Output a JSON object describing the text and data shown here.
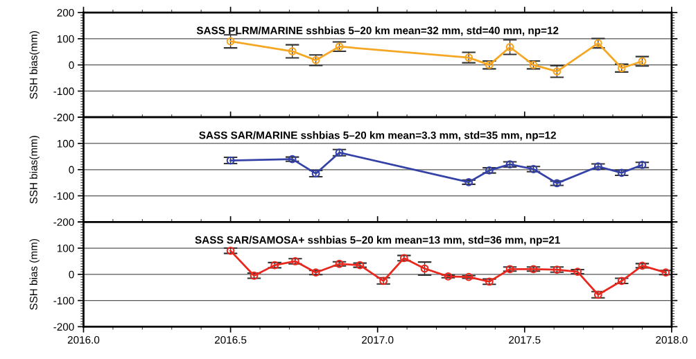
{
  "chart_data": [
    {
      "type": "line",
      "title": "SASS PLRM/MARINE sshbias 5–20 km mean=32 mm, std=40 mm, np=12",
      "ylabel": "SSH bias(mm)",
      "xlim": [
        2016.0,
        2018.0
      ],
      "xticks": [
        2016.0,
        2016.5,
        2017.0,
        2017.5,
        2018.0
      ],
      "ylim": [
        -200,
        200
      ],
      "yticks": [
        -200,
        -100,
        0,
        100,
        200
      ],
      "tick_labels": "y",
      "grid": "y",
      "marker": "circle",
      "line_style": "solid",
      "x": [
        2016.5,
        2016.71,
        2016.79,
        2016.87,
        2017.31,
        2017.38,
        2017.45,
        2017.53,
        2017.61,
        2017.75,
        2017.83,
        2017.9
      ],
      "series": [
        {
          "color": "#f5a623",
          "values": [
            90,
            52,
            18,
            70,
            28,
            0,
            68,
            0,
            -25,
            83,
            -12,
            14
          ],
          "errors": [
            25,
            25,
            20,
            18,
            20,
            15,
            28,
            15,
            22,
            18,
            15,
            18
          ]
        }
      ]
    },
    {
      "type": "line",
      "title": "SASS SAR/MARINE sshbias 5–20 km mean=3.3 mm, std=35 mm, np=12",
      "ylabel": "SSH bias(mm)",
      "xlim": [
        2016.0,
        2018.0
      ],
      "xticks": [
        2016.0,
        2016.5,
        2017.0,
        2017.5,
        2018.0
      ],
      "ylim": [
        -200,
        200
      ],
      "yticks": [
        -200,
        -100,
        0,
        100,
        {
          "value": 200,
          "label": null
        }
      ],
      "tick_labels": "y",
      "grid": "y",
      "marker": "circle",
      "line_style": "solid",
      "x": [
        2016.5,
        2016.71,
        2016.79,
        2016.87,
        2017.31,
        2017.38,
        2017.45,
        2017.53,
        2017.61,
        2017.75,
        2017.83,
        2017.9
      ],
      "series": [
        {
          "color": "#3442a8",
          "values": [
            35,
            40,
            -15,
            65,
            -48,
            -3,
            20,
            2,
            -52,
            12,
            -12,
            18
          ],
          "errors": [
            12,
            8,
            12,
            12,
            8,
            10,
            10,
            10,
            8,
            10,
            10,
            10
          ]
        }
      ]
    },
    {
      "type": "line",
      "title": "SASS SAR/SAMOSA+ sshbias 5–20 km mean=13 mm, std=36 mm, np=21",
      "ylabel": "SSH bias (mm)",
      "xlim": [
        2016.0,
        2018.0
      ],
      "xticks": [
        {
          "value": 2016.0,
          "label": "2016.0"
        },
        {
          "value": 2016.5,
          "label": "2016.5"
        },
        {
          "value": 2017.0,
          "label": "2017.0"
        },
        {
          "value": 2017.5,
          "label": "2017.5"
        },
        {
          "value": 2018.0,
          "label": "2018.0"
        }
      ],
      "ylim": [
        -200,
        200
      ],
      "yticks": [
        -200,
        -100,
        0,
        100,
        {
          "value": 200,
          "label": null
        }
      ],
      "grid": "y",
      "marker": "circle",
      "line_style": "solid",
      "x": [
        2016.5,
        2016.58,
        2016.65,
        2016.72,
        2016.79,
        2016.87,
        2016.94,
        2017.02,
        2017.09,
        2017.16,
        2017.24,
        2017.31,
        2017.38,
        2017.45,
        2017.53,
        2017.61,
        2017.68,
        2017.75,
        2017.83,
        2017.9,
        2017.98
      ],
      "series": [
        {
          "color": "#e8281e",
          "values": [
            90,
            -5,
            35,
            50,
            7,
            40,
            35,
            -25,
            62,
            22,
            -8,
            -10,
            -28,
            20,
            20,
            18,
            10,
            -78,
            -25,
            33,
            7
          ],
          "errors": [
            10,
            10,
            10,
            10,
            8,
            8,
            8,
            12,
            10,
            25,
            5,
            5,
            10,
            8,
            8,
            10,
            8,
            12,
            10,
            8,
            8
          ]
        }
      ]
    }
  ]
}
